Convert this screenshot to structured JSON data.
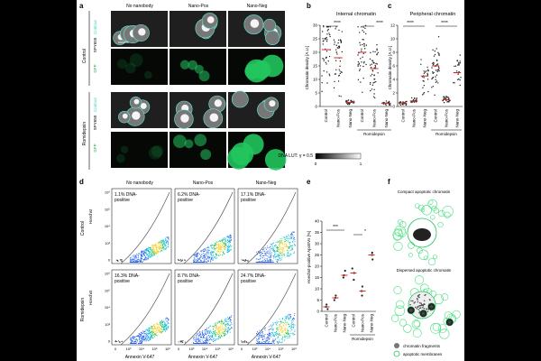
{
  "panels": {
    "a": {
      "letter": "a",
      "columns": [
        "No nanobody",
        "Nano-Pos",
        "Nano-Neg"
      ],
      "groups": [
        "Control",
        "Romidepsin"
      ],
      "channels": [
        "Contour",
        "SPY650",
        "GFP"
      ],
      "lut_label": "DNA LUT: γ = 0.5",
      "lut_ticks": [
        "0",
        "1"
      ]
    },
    "b": {
      "letter": "b",
      "title": "Internal chromatin",
      "ylabel": "Chromatin density [A.U.]",
      "sig": [
        "****",
        "****"
      ]
    },
    "c": {
      "letter": "c",
      "title": "Peripheral chromatin",
      "ylabel": "Chromatin density [A.U.]",
      "sig": [
        "****",
        "****"
      ]
    },
    "d": {
      "letter": "d",
      "columns": [
        "No nanobody",
        "Nano-Pos",
        "Nano-Neg"
      ],
      "rows": [
        "Control",
        "Romidepsin"
      ],
      "row_label": "Hoechst",
      "xlabel": "Annexin V-647",
      "pct": [
        "1.1% DNA-",
        "6.2% DNA-",
        "17.1% DNA-",
        "16.3% DNA-",
        "8.7% DNA-",
        "24.7% DNA-"
      ],
      "pct_suffix": "positive",
      "yticks": [
        "10⁶",
        "10⁵",
        "10⁴",
        "10³",
        "0"
      ],
      "xticks": [
        "0",
        "10³",
        "10⁴",
        "10⁵",
        "10⁶"
      ]
    },
    "e": {
      "letter": "e",
      "ylabel": "Hoechst-positive ApoEVs [%]",
      "yticks": [
        "40",
        "35",
        "30",
        "25",
        "20",
        "15",
        "10",
        "5",
        "0"
      ],
      "sig": [
        "***",
        "*"
      ]
    },
    "f": {
      "letter": "f",
      "title1": "Compact apoptotic chromatin",
      "title2": "Dispersed apoptotic chromatin",
      "legend": [
        "chromatin fragments",
        "apoptotic membranes"
      ]
    }
  },
  "colors": {
    "gfp": "#22c55e",
    "contour": "#5eead4",
    "mean": "#dc2626",
    "accent": "#16a34a"
  },
  "chart_data": [
    {
      "type": "scatter",
      "panel": "b",
      "title": "Internal chromatin",
      "ylabel": "Chromatin density [A.U.]",
      "categories": [
        "Control",
        "Nano-Pos",
        "Nano-Neg",
        "Control",
        "Nano-Pos",
        "Nano-Neg"
      ],
      "group_label": "Romidepsin",
      "ylim": [
        0,
        30
      ],
      "yticks": [
        0,
        5,
        10,
        15,
        20,
        25,
        30
      ],
      "means": [
        21,
        18,
        1.5,
        20,
        14,
        1.2
      ]
    },
    {
      "type": "scatter",
      "panel": "c",
      "title": "Peripheral chromatin",
      "ylabel": "Chromatin density [A.U.]",
      "categories": [
        "Control",
        "Nano-Pos",
        "Nano-Neg",
        "Control",
        "Nano-Pos",
        "Nano-Neg"
      ],
      "group_label": "Romidepsin",
      "ylim": [
        0,
        12
      ],
      "yticks": [
        0,
        2,
        4,
        6,
        8,
        10,
        12
      ],
      "means": [
        0.5,
        0.8,
        4.5,
        6,
        1.0,
        5
      ]
    },
    {
      "type": "scatter",
      "panel": "e",
      "ylabel": "Hoechst-positive ApoEVs [%]",
      "categories": [
        "Control",
        "Nano-Pos",
        "Nano-Neg",
        "Control",
        "Nano-Pos",
        "Nano-Neg"
      ],
      "group_label": "Romidepsin",
      "ylim": [
        0,
        40
      ],
      "values": [
        [
          1,
          2,
          3
        ],
        [
          5,
          6,
          7
        ],
        [
          15,
          18,
          16
        ],
        [
          14,
          17,
          19
        ],
        [
          7,
          9,
          11
        ],
        [
          23,
          25,
          26
        ]
      ],
      "means": [
        2,
        6,
        16,
        17,
        9,
        25
      ]
    }
  ]
}
